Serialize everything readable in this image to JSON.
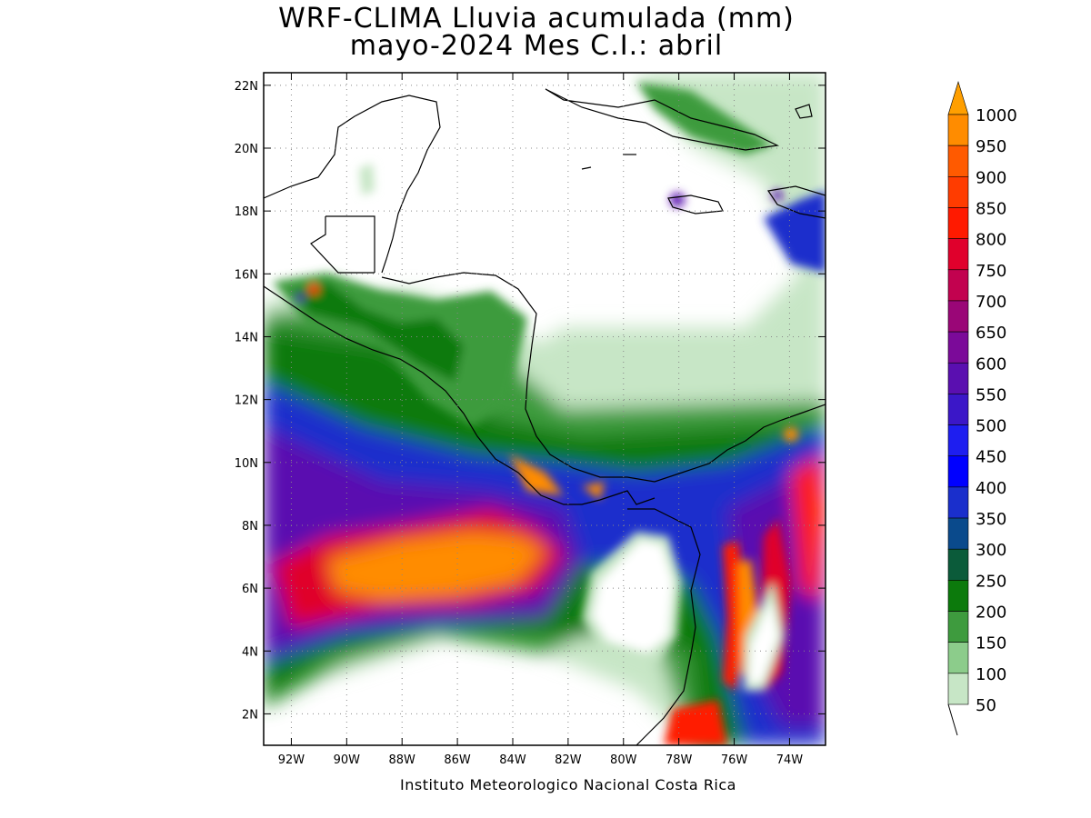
{
  "title_line1": "WRF-CLIMA Lluvia acumulada (mm)",
  "title_line2": "mayo-2024 Mes C.I.: abril",
  "credit": "Instituto Meteorologico Nacional Costa Rica",
  "map": {
    "lon_range": [
      -93,
      -72.7
    ],
    "lat_range": [
      1,
      22.4
    ],
    "lon_ticks": [
      {
        "lon": -92,
        "label": "92W"
      },
      {
        "lon": -90,
        "label": "90W"
      },
      {
        "lon": -88,
        "label": "88W"
      },
      {
        "lon": -86,
        "label": "86W"
      },
      {
        "lon": -84,
        "label": "84W"
      },
      {
        "lon": -82,
        "label": "82W"
      },
      {
        "lon": -80,
        "label": "80W"
      },
      {
        "lon": -78,
        "label": "78W"
      },
      {
        "lon": -76,
        "label": "76W"
      },
      {
        "lon": -74,
        "label": "74W"
      }
    ],
    "lat_ticks": [
      {
        "lat": 22,
        "label": "22N"
      },
      {
        "lat": 20,
        "label": "20N"
      },
      {
        "lat": 18,
        "label": "18N"
      },
      {
        "lat": 16,
        "label": "16N"
      },
      {
        "lat": 14,
        "label": "14N"
      },
      {
        "lat": 12,
        "label": "12N"
      },
      {
        "lat": 10,
        "label": "10N"
      },
      {
        "lat": 8,
        "label": "8N"
      },
      {
        "lat": 6,
        "label": "6N"
      },
      {
        "lat": 4,
        "label": "4N"
      },
      {
        "lat": 2,
        "label": "2N"
      }
    ]
  },
  "colorbar": {
    "levels": [
      "50",
      "100",
      "150",
      "200",
      "250",
      "300",
      "350",
      "400",
      "450",
      "500",
      "550",
      "600",
      "650",
      "700",
      "750",
      "800",
      "850",
      "900",
      "950",
      "1000"
    ],
    "colors": [
      "#ffffff",
      "#c7e6c6",
      "#8ccc8b",
      "#3e9b3e",
      "#0c7a0c",
      "#0b5b3a",
      "#0a4a8c",
      "#1a2fcc",
      "#0000ff",
      "#1e1ef0",
      "#3b17c8",
      "#5a0fb0",
      "#7b0a99",
      "#9a0677",
      "#c2024f",
      "#e0002c",
      "#ff1a00",
      "#ff3c00",
      "#ff5a00",
      "#ff8c00",
      "#ff9f00"
    ]
  }
}
